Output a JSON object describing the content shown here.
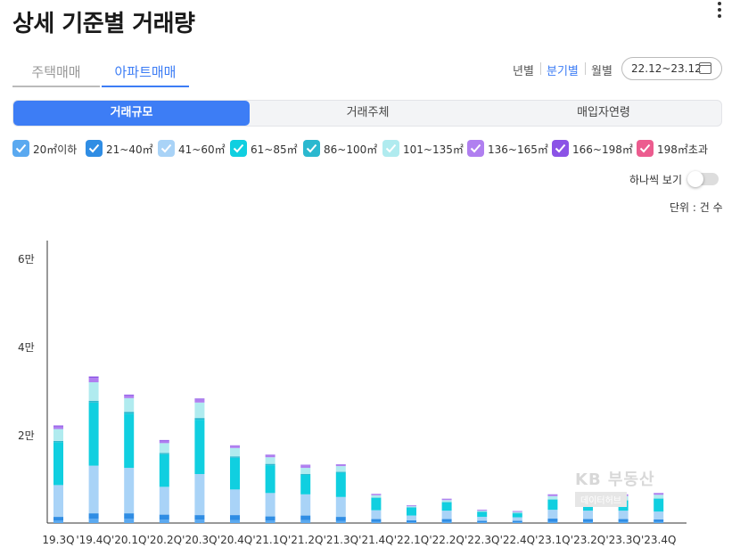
{
  "header": {
    "title": "상세 기준별 거래량"
  },
  "property_tabs": [
    "주택매매",
    "아파트매매"
  ],
  "period": {
    "options": [
      "년별",
      "분기별",
      "월별"
    ],
    "selected": "분기별",
    "range": "22.12~23.12"
  },
  "segments": {
    "items": [
      "거래규모",
      "거래주체",
      "매입자연령"
    ],
    "active": "거래규모"
  },
  "legend": [
    {
      "label": "20㎡이하",
      "color": "#5aa9f0"
    },
    {
      "label": "21~40㎡",
      "color": "#2f8de4"
    },
    {
      "label": "41~60㎡",
      "color": "#a9d3f7"
    },
    {
      "label": "61~85㎡",
      "color": "#10cfe0"
    },
    {
      "label": "86~100㎡",
      "color": "#2bb8cf"
    },
    {
      "label": "101~135㎡",
      "color": "#b0ebef"
    },
    {
      "label": "136~165㎡",
      "color": "#b07ff0"
    },
    {
      "label": "166~198㎡",
      "color": "#8b53e6"
    },
    {
      "label": "198㎡초과",
      "color": "#ec5c8f"
    }
  ],
  "toggle": {
    "label": "하나씩 보기",
    "on": false
  },
  "unit_label": "단위 : 건 수",
  "watermark": {
    "brand": "KB 부동산",
    "sub": "데이터허브"
  },
  "chart_data": {
    "type": "bar",
    "stacked": true,
    "categories": [
      "19.3Q",
      "'19.4Q",
      "'20.1Q",
      "'20.2Q",
      "'20.3Q",
      "'20.4Q",
      "'21.1Q",
      "'21.2Q",
      "'21.3Q",
      "'21.4Q",
      "'22.1Q",
      "'22.2Q",
      "'22.3Q",
      "'22.4Q",
      "'23.1Q",
      "'23.2Q",
      "'23.3Q",
      "'23.4Q"
    ],
    "y_ticks": [
      "2만",
      "4만",
      "6만"
    ],
    "ylim": [
      0,
      64000
    ],
    "series": [
      {
        "name": "20㎡이하",
        "color": "#5aa9f0",
        "values": [
          600,
          1000,
          1000,
          800,
          800,
          700,
          600,
          700,
          500,
          300,
          200,
          300,
          200,
          200,
          300,
          300,
          300,
          300
        ]
      },
      {
        "name": "21~40㎡",
        "color": "#2f8de4",
        "values": [
          800,
          1200,
          1200,
          1100,
          1000,
          1100,
          900,
          1000,
          900,
          600,
          400,
          600,
          300,
          300,
          700,
          600,
          600,
          500
        ]
      },
      {
        "name": "41~60㎡",
        "color": "#a9d3f7",
        "values": [
          7200,
          10800,
          10300,
          6300,
          9300,
          5800,
          5300,
          4800,
          4500,
          2000,
          1100,
          1900,
          900,
          800,
          2000,
          1900,
          1900,
          1800
        ]
      },
      {
        "name": "61~85㎡",
        "color": "#10cfe0",
        "values": [
          9700,
          14300,
          12300,
          7400,
          12300,
          7200,
          6300,
          4400,
          5500,
          2800,
          1800,
          1900,
          1100,
          900,
          2300,
          2100,
          2300,
          2900
        ]
      },
      {
        "name": "86~100㎡",
        "color": "#2bb8cf",
        "values": [
          300,
          400,
          400,
          300,
          400,
          300,
          300,
          200,
          200,
          100,
          100,
          100,
          100,
          100,
          100,
          100,
          100,
          100
        ]
      },
      {
        "name": "101~135㎡",
        "color": "#b0ebef",
        "values": [
          2700,
          4200,
          3100,
          2200,
          3500,
          1900,
          1500,
          1400,
          1300,
          500,
          200,
          400,
          200,
          200,
          700,
          700,
          900,
          800
        ]
      },
      {
        "name": "136~165㎡",
        "color": "#b07ff0",
        "values": [
          600,
          1000,
          600,
          500,
          700,
          500,
          500,
          600,
          300,
          200,
          100,
          200,
          100,
          100,
          300,
          300,
          300,
          300
        ]
      },
      {
        "name": "166~198㎡",
        "color": "#8b53e6",
        "values": [
          200,
          300,
          200,
          200,
          200,
          100,
          100,
          100,
          100,
          100,
          100,
          100,
          100,
          100,
          100,
          100,
          100,
          100
        ]
      },
      {
        "name": "198㎡초과",
        "color": "#ec5c8f",
        "values": [
          0,
          0,
          0,
          0,
          0,
          0,
          0,
          0,
          0,
          0,
          0,
          0,
          0,
          0,
          0,
          0,
          0,
          0
        ]
      }
    ]
  }
}
